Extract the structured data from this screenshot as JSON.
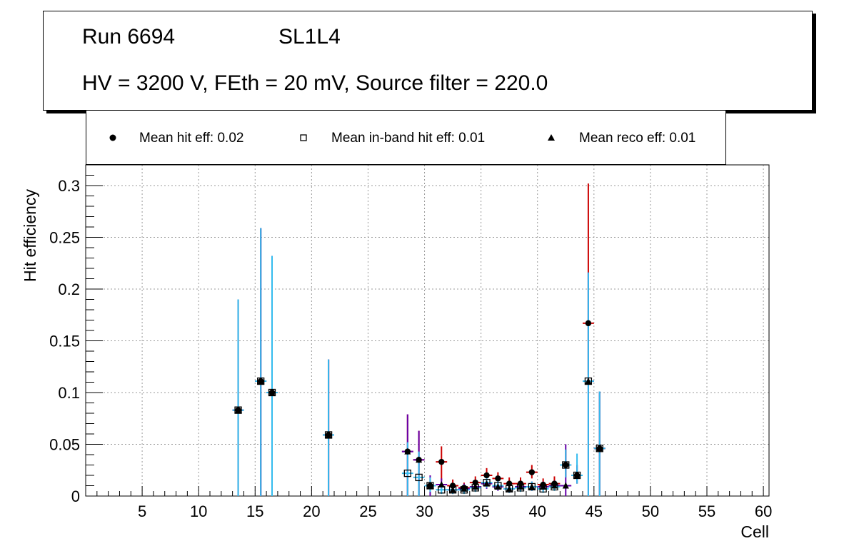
{
  "title": {
    "line1_left": "Run 6694",
    "line1_right": "SL1L4",
    "line2": "HV = 3200 V, FEth = 20 mV, Source filter = 220.0"
  },
  "legend": {
    "placement": "top",
    "entries": [
      {
        "label": "Mean hit  eff: 0.02",
        "marker": "circle"
      },
      {
        "label": "Mean in-band hit eff: 0.01",
        "marker": "open-square"
      },
      {
        "label": "Mean reco eff: 0.01",
        "marker": "triangle"
      }
    ]
  },
  "colors": {
    "hit_error": "#cc0000",
    "inband_error": "#33bbee",
    "reco_error": "#6600aa"
  },
  "chart_data": {
    "type": "scatter",
    "xlabel": "Cell",
    "ylabel": "Hit efficiency",
    "xlim": [
      0,
      60.5
    ],
    "ylim": [
      0,
      0.32
    ],
    "x_ticks": [
      5,
      10,
      15,
      20,
      25,
      30,
      35,
      40,
      45,
      50,
      55,
      60
    ],
    "x_tick_labels": [
      "5",
      "10",
      "15",
      "20",
      "25",
      "30",
      "35",
      "40",
      "45",
      "50",
      "55",
      "60"
    ],
    "y_ticks": [
      0,
      0.05,
      0.1,
      0.15,
      0.2,
      0.25,
      0.3
    ],
    "y_tick_labels": [
      "0",
      "0.05",
      "0.1",
      "0.15",
      "0.2",
      "0.25",
      "0.3"
    ],
    "grid": true,
    "series": [
      {
        "name": "Mean hit  eff: 0.02",
        "points": [
          {
            "x": 13.5,
            "y": 0.083,
            "err_lo": 0.083,
            "err_hi": 0.107
          },
          {
            "x": 15.5,
            "y": 0.111,
            "err_lo": 0.111,
            "err_hi": 0.148
          },
          {
            "x": 16.5,
            "y": 0.1,
            "err_lo": 0.1,
            "err_hi": 0.132
          },
          {
            "x": 21.5,
            "y": 0.059,
            "err_lo": 0.059,
            "err_hi": 0.073
          },
          {
            "x": 28.5,
            "y": 0.043,
            "err_lo": 0.043,
            "err_hi": 0.036
          },
          {
            "x": 29.5,
            "y": 0.035,
            "err_lo": 0.035,
            "err_hi": 0.028
          },
          {
            "x": 30.5,
            "y": 0.01,
            "err_lo": 0.006,
            "err_hi": 0.008
          },
          {
            "x": 31.5,
            "y": 0.033,
            "err_lo": 0.018,
            "err_hi": 0.015
          },
          {
            "x": 32.5,
            "y": 0.01,
            "err_lo": 0.005,
            "err_hi": 0.006
          },
          {
            "x": 33.5,
            "y": 0.008,
            "err_lo": 0.004,
            "err_hi": 0.005
          },
          {
            "x": 34.5,
            "y": 0.013,
            "err_lo": 0.005,
            "err_hi": 0.006
          },
          {
            "x": 35.5,
            "y": 0.02,
            "err_lo": 0.006,
            "err_hi": 0.007
          },
          {
            "x": 36.5,
            "y": 0.017,
            "err_lo": 0.005,
            "err_hi": 0.006
          },
          {
            "x": 37.5,
            "y": 0.012,
            "err_lo": 0.005,
            "err_hi": 0.006
          },
          {
            "x": 38.5,
            "y": 0.012,
            "err_lo": 0.005,
            "err_hi": 0.006
          },
          {
            "x": 39.5,
            "y": 0.023,
            "err_lo": 0.006,
            "err_hi": 0.007
          },
          {
            "x": 40.5,
            "y": 0.011,
            "err_lo": 0.005,
            "err_hi": 0.006
          },
          {
            "x": 41.5,
            "y": 0.012,
            "err_lo": 0.006,
            "err_hi": 0.007
          },
          {
            "x": 42.5,
            "y": 0.03,
            "err_lo": 0.012,
            "err_hi": 0.015
          },
          {
            "x": 43.5,
            "y": 0.02,
            "err_lo": 0.008,
            "err_hi": 0.01
          },
          {
            "x": 44.5,
            "y": 0.167,
            "err_lo": 0.05,
            "err_hi": 0.135
          },
          {
            "x": 45.5,
            "y": 0.046,
            "err_lo": 0.046,
            "err_hi": 0.055
          }
        ]
      },
      {
        "name": "Mean in-band hit eff: 0.01",
        "points": [
          {
            "x": 13.5,
            "y": 0.083,
            "err_lo": 0.083,
            "err_hi": 0.107
          },
          {
            "x": 15.5,
            "y": 0.111,
            "err_lo": 0.111,
            "err_hi": 0.148
          },
          {
            "x": 16.5,
            "y": 0.1,
            "err_lo": 0.1,
            "err_hi": 0.132
          },
          {
            "x": 21.5,
            "y": 0.059,
            "err_lo": 0.059,
            "err_hi": 0.073
          },
          {
            "x": 28.5,
            "y": 0.022,
            "err_lo": 0.022,
            "err_hi": 0.03
          },
          {
            "x": 29.5,
            "y": 0.018,
            "err_lo": 0.018,
            "err_hi": 0.025
          },
          {
            "x": 30.5,
            "y": 0.01,
            "err_lo": 0.006,
            "err_hi": 0.008
          },
          {
            "x": 31.5,
            "y": 0.006,
            "err_lo": 0.004,
            "err_hi": 0.006
          },
          {
            "x": 32.5,
            "y": 0.006,
            "err_lo": 0.004,
            "err_hi": 0.005
          },
          {
            "x": 33.5,
            "y": 0.006,
            "err_lo": 0.004,
            "err_hi": 0.005
          },
          {
            "x": 34.5,
            "y": 0.008,
            "err_lo": 0.004,
            "err_hi": 0.005
          },
          {
            "x": 35.5,
            "y": 0.013,
            "err_lo": 0.005,
            "err_hi": 0.006
          },
          {
            "x": 36.5,
            "y": 0.01,
            "err_lo": 0.004,
            "err_hi": 0.005
          },
          {
            "x": 37.5,
            "y": 0.007,
            "err_lo": 0.004,
            "err_hi": 0.005
          },
          {
            "x": 38.5,
            "y": 0.008,
            "err_lo": 0.004,
            "err_hi": 0.005
          },
          {
            "x": 39.5,
            "y": 0.009,
            "err_lo": 0.004,
            "err_hi": 0.005
          },
          {
            "x": 40.5,
            "y": 0.007,
            "err_lo": 0.004,
            "err_hi": 0.005
          },
          {
            "x": 41.5,
            "y": 0.009,
            "err_lo": 0.004,
            "err_hi": 0.005
          },
          {
            "x": 42.5,
            "y": 0.03,
            "err_lo": 0.012,
            "err_hi": 0.015
          },
          {
            "x": 43.5,
            "y": 0.02,
            "err_lo": 0.008,
            "err_hi": 0.021
          },
          {
            "x": 44.5,
            "y": 0.111,
            "err_lo": 0.111,
            "err_hi": 0.105
          },
          {
            "x": 45.5,
            "y": 0.046,
            "err_lo": 0.046,
            "err_hi": 0.055
          }
        ]
      },
      {
        "name": "Mean reco eff: 0.01",
        "points": [
          {
            "x": 13.5,
            "y": 0.083,
            "err_lo": 0.083,
            "err_hi": 0.107
          },
          {
            "x": 15.5,
            "y": 0.111,
            "err_lo": 0.111,
            "err_hi": 0.148
          },
          {
            "x": 16.5,
            "y": 0.1,
            "err_lo": 0.1,
            "err_hi": 0.132
          },
          {
            "x": 21.5,
            "y": 0.059,
            "err_lo": 0.059,
            "err_hi": 0.073
          },
          {
            "x": 28.5,
            "y": 0.043,
            "err_lo": 0.043,
            "err_hi": 0.036
          },
          {
            "x": 29.5,
            "y": 0.035,
            "err_lo": 0.035,
            "err_hi": 0.028
          },
          {
            "x": 30.5,
            "y": 0.01,
            "err_lo": 0.01,
            "err_hi": 0.01
          },
          {
            "x": 31.5,
            "y": 0.011,
            "err_lo": 0.005,
            "err_hi": 0.006
          },
          {
            "x": 32.5,
            "y": 0.006,
            "err_lo": 0.004,
            "err_hi": 0.005
          },
          {
            "x": 33.5,
            "y": 0.007,
            "err_lo": 0.004,
            "err_hi": 0.005
          },
          {
            "x": 34.5,
            "y": 0.009,
            "err_lo": 0.004,
            "err_hi": 0.005
          },
          {
            "x": 35.5,
            "y": 0.012,
            "err_lo": 0.005,
            "err_hi": 0.006
          },
          {
            "x": 36.5,
            "y": 0.009,
            "err_lo": 0.004,
            "err_hi": 0.005
          },
          {
            "x": 37.5,
            "y": 0.007,
            "err_lo": 0.004,
            "err_hi": 0.005
          },
          {
            "x": 38.5,
            "y": 0.009,
            "err_lo": 0.004,
            "err_hi": 0.005
          },
          {
            "x": 39.5,
            "y": 0.009,
            "err_lo": 0.004,
            "err_hi": 0.005
          },
          {
            "x": 40.5,
            "y": 0.009,
            "err_lo": 0.004,
            "err_hi": 0.005
          },
          {
            "x": 41.5,
            "y": 0.01,
            "err_lo": 0.004,
            "err_hi": 0.005
          },
          {
            "x": 42.5,
            "y": 0.01,
            "err_lo": 0.01,
            "err_hi": 0.04
          },
          {
            "x": 43.5,
            "y": 0.02,
            "err_lo": 0.008,
            "err_hi": 0.01
          },
          {
            "x": 44.5,
            "y": 0.111,
            "err_lo": 0.111,
            "err_hi": 0.105
          },
          {
            "x": 45.5,
            "y": 0.046,
            "err_lo": 0.046,
            "err_hi": 0.055
          }
        ]
      }
    ]
  }
}
